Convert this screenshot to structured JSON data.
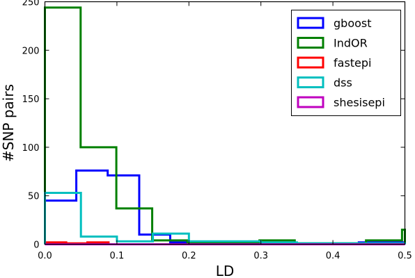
{
  "chart_data": {
    "type": "histogram",
    "xlabel": "LD",
    "ylabel": "#SNP pairs",
    "xlim": [
      0.0,
      0.5
    ],
    "ylim": [
      0,
      250
    ],
    "xticks": [
      "0.0",
      "0.1",
      "0.2",
      "0.3",
      "0.4",
      "0.5"
    ],
    "yticks": [
      "0",
      "50",
      "100",
      "150",
      "200",
      "250"
    ],
    "grid": false,
    "legend_position": "top-right",
    "series": [
      {
        "name": "gboost",
        "color": "#0000ff",
        "edges": [
          0.0,
          0.0436,
          0.0872,
          0.131,
          0.174,
          0.218,
          0.262,
          0.305,
          0.349,
          0.392,
          0.436,
          0.5
        ],
        "values": [
          45,
          76,
          71,
          10,
          2,
          1,
          1,
          1,
          1,
          1,
          2
        ]
      },
      {
        "name": "IndOR",
        "color": "#008000",
        "edges": [
          0.0,
          0.0496,
          0.0992,
          0.149,
          0.198,
          0.248,
          0.298,
          0.347,
          0.397,
          0.446,
          0.496,
          0.5
        ],
        "values": [
          244,
          100,
          37,
          4,
          2,
          2,
          4,
          1,
          1,
          4,
          15
        ]
      },
      {
        "name": "fastepi",
        "color": "#ff0000",
        "edges": [
          0.0,
          0.0296,
          0.059,
          0.0884,
          0.118
        ],
        "values": [
          2,
          1,
          2,
          0
        ]
      },
      {
        "name": "dss",
        "color": "#00bfbf",
        "edges": [
          0.0,
          0.05,
          0.1,
          0.15,
          0.2,
          0.25,
          0.3,
          0.35,
          0.4,
          0.45,
          0.5
        ],
        "values": [
          53,
          8,
          3,
          11,
          3,
          3,
          2,
          1,
          1,
          1
        ]
      },
      {
        "name": "shesisepi",
        "color": "#bf00bf",
        "edges": [
          0.0,
          0.5
        ],
        "values": [
          0
        ]
      }
    ]
  }
}
